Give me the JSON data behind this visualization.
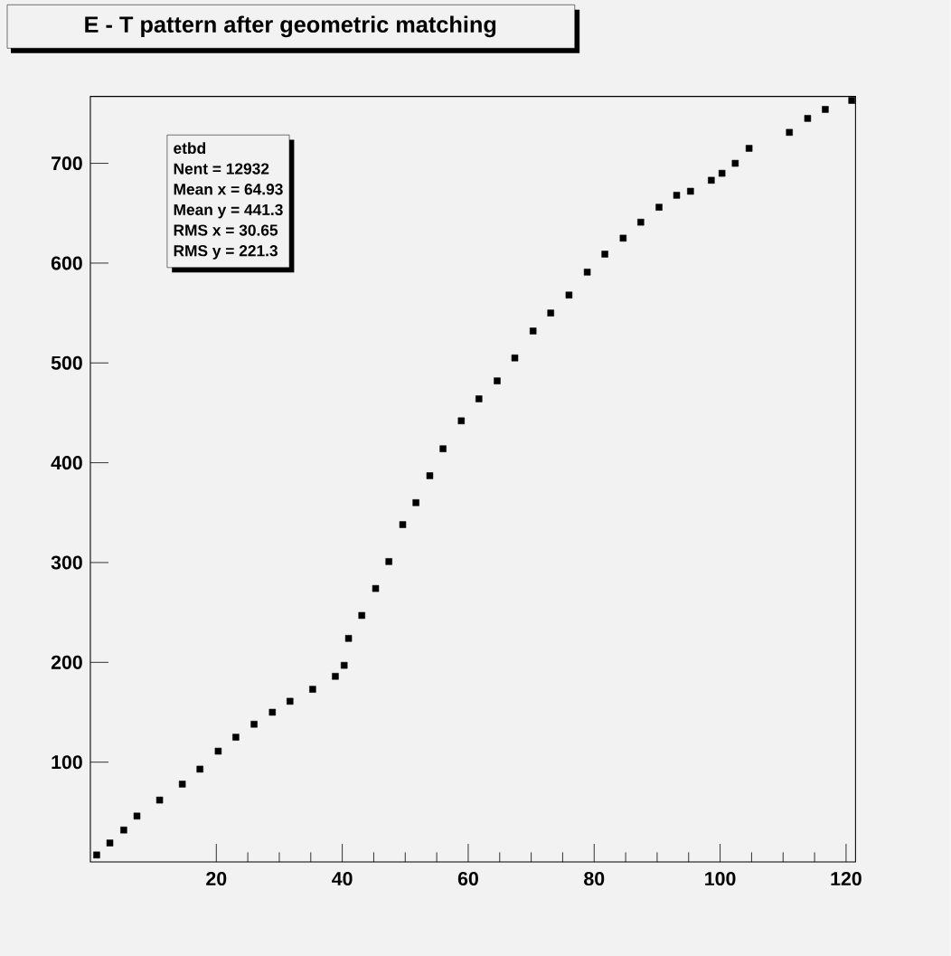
{
  "chart_data": {
    "type": "scatter",
    "title": "E - T pattern after geometric matching",
    "annotations": [
      "etbd",
      "Nent = 12932",
      "Mean x =  64.93",
      "Mean y =  441.3",
      "RMS x  =  30.65",
      "RMS y  =  221.3"
    ],
    "x": [
      1,
      3.1,
      5.3,
      7.4,
      11,
      14.6,
      17.4,
      20.3,
      23.1,
      26,
      28.9,
      31.7,
      35.3,
      38.9,
      40.3,
      41,
      43.1,
      45.3,
      47.4,
      49.6,
      51.7,
      53.9,
      56,
      58.9,
      61.7,
      64.6,
      67.4,
      70.3,
      73.1,
      76,
      78.9,
      81.7,
      84.6,
      87.4,
      90.3,
      93.1,
      95.3,
      98.6,
      100.3,
      102.4,
      104.6,
      111,
      113.9,
      116.7,
      120.9
    ],
    "values": [
      7,
      19,
      32,
      46,
      62,
      78,
      93,
      111,
      125,
      138,
      150,
      161,
      173,
      186,
      197,
      224,
      247,
      274,
      301,
      338,
      360,
      387,
      414,
      442,
      464,
      482,
      505,
      532,
      550,
      568,
      591,
      609,
      625,
      641,
      656,
      668,
      672,
      683,
      690,
      700,
      715,
      731,
      745,
      754,
      763
    ],
    "color": "#000000",
    "marker": "square",
    "grid": false,
    "xlim": [
      0,
      121.5
    ],
    "ylim": [
      0,
      767
    ],
    "xticks": [
      20,
      40,
      60,
      80,
      100,
      120
    ],
    "yticks": [
      100,
      200,
      300,
      400,
      500,
      600,
      700
    ]
  }
}
